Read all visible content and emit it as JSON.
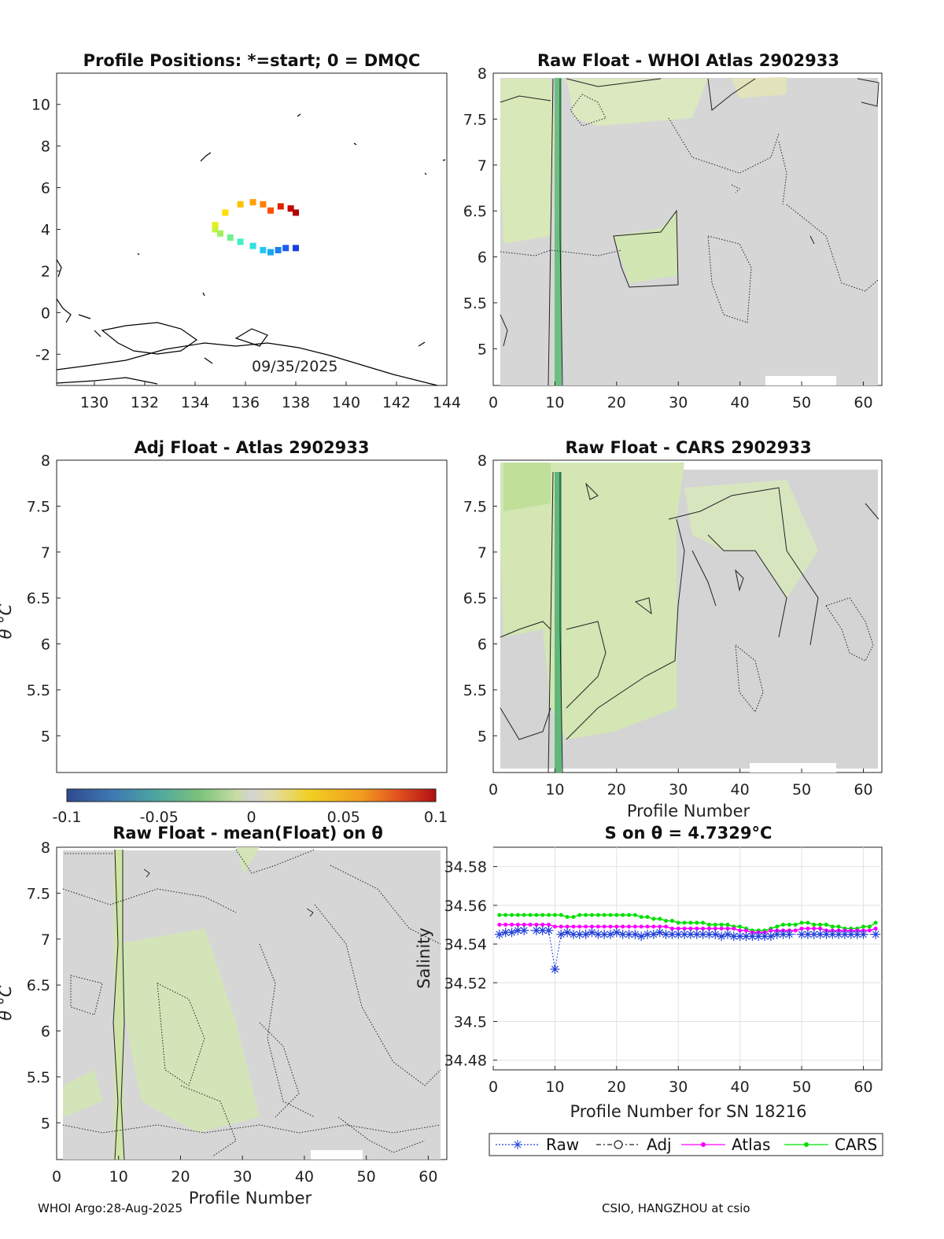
{
  "footer": {
    "left": "WHOI Argo:28-Aug-2025",
    "right": "CSIO, HANGZHOU at csio"
  },
  "colors": {
    "raw": "#1f3fd6",
    "adj": "#222222",
    "atlas": "#ff00ff",
    "cars": "#00e000",
    "neutral": "#d4d4d4",
    "light_green": "#d6e9b6",
    "mid_green": "#c2e19a",
    "dark_green": "#5fb87a"
  },
  "chart_data": [
    {
      "id": "positions",
      "type": "scatter",
      "title": "Profile Positions: *=start; 0 = DMQC",
      "xlim": [
        128.5,
        144
      ],
      "ylim": [
        -3.5,
        11.5
      ],
      "xticks": [
        130,
        132,
        134,
        136,
        138,
        140,
        142,
        144
      ],
      "yticks": [
        10,
        8,
        6,
        4,
        2,
        0,
        -2
      ],
      "annotation": "09/35/2025",
      "track_lon": [
        138.0,
        137.6,
        137.3,
        137.0,
        136.7,
        136.3,
        135.8,
        135.4,
        135.0,
        134.8,
        134.8,
        135.2,
        135.8,
        136.3,
        136.7,
        137.0,
        137.4,
        137.8,
        138.0
      ],
      "track_lat": [
        3.1,
        3.1,
        3.0,
        2.9,
        3.0,
        3.2,
        3.4,
        3.6,
        3.8,
        4.0,
        4.2,
        4.8,
        5.2,
        5.3,
        5.2,
        4.9,
        5.1,
        5.0,
        4.8
      ]
    },
    {
      "id": "whoi",
      "type": "heatmap",
      "title": "Raw Float - WHOI Atlas  2902933",
      "xlim": [
        0,
        63
      ],
      "ylim": [
        4.6,
        8.0
      ],
      "xticks": [
        0,
        10,
        20,
        30,
        40,
        50,
        60
      ],
      "yticks": [
        8,
        7.5,
        7,
        6.5,
        6,
        5.5,
        5
      ]
    },
    {
      "id": "adj",
      "type": "heatmap",
      "title": "Adj Float - Atlas  2902933",
      "ylabel": "θ °C",
      "ylim": [
        4.6,
        8.0
      ],
      "yticks": [
        8,
        7.5,
        7,
        6.5,
        6,
        5.5,
        5
      ]
    },
    {
      "id": "cars",
      "type": "heatmap",
      "title": "Raw Float - CARS  2902933",
      "xlabel": "Profile Number",
      "xlim": [
        0,
        63
      ],
      "ylim": [
        4.6,
        8.0
      ],
      "xticks": [
        0,
        10,
        20,
        30,
        40,
        50,
        60
      ],
      "yticks": [
        8,
        7.5,
        7,
        6.5,
        6,
        5.5,
        5
      ]
    },
    {
      "id": "colorbar",
      "type": "colorbar",
      "range": [
        -0.1,
        0.1
      ],
      "ticks": [
        "-0.1",
        "-0.05",
        "0",
        "0.05",
        "0.1"
      ]
    },
    {
      "id": "mean",
      "type": "heatmap",
      "title": "Raw Float - mean(Float) on θ",
      "xlabel": "Profile Number",
      "ylabel": "θ °C",
      "xlim": [
        0,
        63
      ],
      "ylim": [
        4.6,
        8.0
      ],
      "xticks": [
        0,
        10,
        20,
        30,
        40,
        50,
        60
      ],
      "yticks": [
        8,
        7.5,
        7,
        6.5,
        6,
        5.5,
        5
      ]
    },
    {
      "id": "salinity",
      "type": "line",
      "title": "S on θ = 4.7329°C",
      "xlabel": "Profile Number for SN 18216",
      "ylabel": "Salinity",
      "xlim": [
        0,
        63
      ],
      "ylim": [
        34.475,
        34.59
      ],
      "xticks": [
        0,
        10,
        20,
        30,
        40,
        50,
        60
      ],
      "yticks": [
        34.58,
        34.56,
        34.54,
        34.52,
        34.5,
        34.48
      ],
      "legend": [
        "Raw",
        "Adj",
        "Atlas",
        "CARS"
      ],
      "series": [
        {
          "name": "Raw",
          "x": [
            1,
            2,
            3,
            4,
            5,
            7,
            8,
            9,
            10,
            11,
            12,
            13,
            14,
            15,
            16,
            17,
            18,
            19,
            20,
            21,
            22,
            23,
            24,
            25,
            26,
            27,
            28,
            29,
            30,
            31,
            32,
            33,
            34,
            35,
            36,
            37,
            38,
            39,
            40,
            41,
            42,
            43,
            44,
            45,
            46,
            47,
            48,
            50,
            51,
            52,
            53,
            54,
            55,
            56,
            57,
            58,
            59,
            60,
            62
          ],
          "values": [
            34.545,
            34.546,
            34.546,
            34.547,
            34.547,
            34.547,
            34.547,
            34.547,
            34.527,
            34.545,
            34.546,
            34.545,
            34.545,
            34.545,
            34.546,
            34.545,
            34.545,
            34.545,
            34.546,
            34.545,
            34.545,
            34.545,
            34.544,
            34.545,
            34.545,
            34.546,
            34.545,
            34.545,
            34.545,
            34.545,
            34.545,
            34.545,
            34.545,
            34.545,
            34.545,
            34.544,
            34.545,
            34.544,
            34.544,
            34.544,
            34.544,
            34.544,
            34.544,
            34.544,
            34.545,
            34.545,
            34.545,
            34.545,
            34.545,
            34.545,
            34.545,
            34.545,
            34.545,
            34.545,
            34.545,
            34.545,
            34.545,
            34.545,
            34.545
          ]
        },
        {
          "name": "Atlas",
          "x": [
            1,
            2,
            3,
            4,
            5,
            6,
            7,
            8,
            9,
            10,
            11,
            12,
            13,
            14,
            15,
            16,
            17,
            18,
            19,
            20,
            21,
            22,
            23,
            24,
            25,
            26,
            27,
            28,
            29,
            30,
            31,
            32,
            33,
            34,
            35,
            36,
            37,
            38,
            39,
            40,
            41,
            42,
            43,
            44,
            45,
            46,
            47,
            48,
            49,
            50,
            51,
            52,
            53,
            54,
            55,
            56,
            57,
            58,
            59,
            60,
            61,
            62
          ],
          "values": [
            34.55,
            34.55,
            34.55,
            34.55,
            34.55,
            34.55,
            34.55,
            34.55,
            34.55,
            34.549,
            34.549,
            34.549,
            34.549,
            34.549,
            34.549,
            34.549,
            34.549,
            34.549,
            34.549,
            34.549,
            34.549,
            34.549,
            34.549,
            34.549,
            34.549,
            34.549,
            34.549,
            34.549,
            34.548,
            34.548,
            34.548,
            34.548,
            34.548,
            34.548,
            34.548,
            34.548,
            34.548,
            34.548,
            34.548,
            34.547,
            34.547,
            34.546,
            34.546,
            34.546,
            34.547,
            34.547,
            34.547,
            34.547,
            34.547,
            34.548,
            34.548,
            34.548,
            34.548,
            34.547,
            34.547,
            34.547,
            34.547,
            34.547,
            34.547,
            34.547,
            34.547,
            34.548
          ]
        },
        {
          "name": "CARS",
          "x": [
            1,
            2,
            3,
            4,
            5,
            6,
            7,
            8,
            9,
            10,
            11,
            12,
            13,
            14,
            15,
            16,
            17,
            18,
            19,
            20,
            21,
            22,
            23,
            24,
            25,
            26,
            27,
            28,
            29,
            30,
            31,
            32,
            33,
            34,
            35,
            36,
            37,
            38,
            39,
            40,
            41,
            42,
            43,
            44,
            45,
            46,
            47,
            48,
            49,
            50,
            51,
            52,
            53,
            54,
            55,
            56,
            57,
            58,
            59,
            60,
            61,
            62
          ],
          "values": [
            34.555,
            34.555,
            34.555,
            34.555,
            34.555,
            34.555,
            34.555,
            34.555,
            34.555,
            34.555,
            34.555,
            34.554,
            34.554,
            34.555,
            34.555,
            34.555,
            34.555,
            34.555,
            34.555,
            34.555,
            34.555,
            34.555,
            34.555,
            34.554,
            34.554,
            34.553,
            34.553,
            34.552,
            34.552,
            34.551,
            34.551,
            34.551,
            34.551,
            34.551,
            34.55,
            34.55,
            34.55,
            34.55,
            34.549,
            34.549,
            34.548,
            34.547,
            34.547,
            34.547,
            34.548,
            34.549,
            34.55,
            34.55,
            34.55,
            34.551,
            34.551,
            34.55,
            34.55,
            34.55,
            34.549,
            34.549,
            34.548,
            34.548,
            34.548,
            34.549,
            34.549,
            34.551
          ]
        }
      ]
    }
  ]
}
